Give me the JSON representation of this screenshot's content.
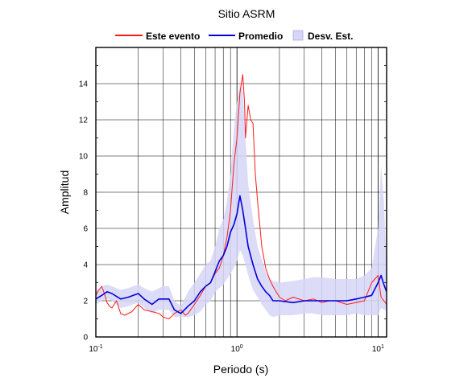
{
  "chart_data": {
    "type": "line",
    "title": "Sitio ASRM",
    "xlabel": "Periodo (s)",
    "ylabel": "Amplitud",
    "x_scale": "log",
    "xlim": [
      0.1,
      11.5
    ],
    "ylim": [
      0,
      16
    ],
    "x_ticks": [
      0.1,
      1,
      10
    ],
    "x_tick_labels": [
      {
        "base": "10",
        "exp": "-1"
      },
      {
        "base": "10",
        "exp": "0"
      },
      {
        "base": "10",
        "exp": "1"
      }
    ],
    "y_ticks": [
      0,
      2,
      4,
      6,
      8,
      10,
      12,
      14
    ],
    "y_tick_labels": [
      "0",
      "2",
      "4",
      "6",
      "8",
      "10",
      "12",
      "14"
    ],
    "grid": true,
    "legend_position": "top",
    "legend": [
      {
        "label": "Este evento",
        "kind": "line",
        "color": "#ff1a1a"
      },
      {
        "label": "Promedio",
        "kind": "line",
        "color": "#0000dd"
      },
      {
        "label": "Desv. Est.",
        "kind": "patch",
        "color": "#d6d6f7"
      }
    ],
    "series": [
      {
        "name": "Este evento",
        "color": "#ff1a1a",
        "x": [
          0.1,
          0.105,
          0.11,
          0.115,
          0.12,
          0.125,
          0.13,
          0.14,
          0.15,
          0.16,
          0.18,
          0.2,
          0.22,
          0.25,
          0.28,
          0.3,
          0.33,
          0.36,
          0.4,
          0.43,
          0.45,
          0.5,
          0.55,
          0.6,
          0.65,
          0.7,
          0.75,
          0.8,
          0.85,
          0.9,
          0.95,
          1.0,
          1.05,
          1.1,
          1.13,
          1.15,
          1.2,
          1.25,
          1.3,
          1.35,
          1.4,
          1.5,
          1.6,
          1.7,
          1.8,
          2.0,
          2.2,
          2.5,
          3.0,
          3.5,
          4.0,
          4.5,
          5.0,
          6.0,
          7.0,
          8.0,
          9.0,
          10.0,
          10.5,
          11.0,
          11.5
        ],
        "y": [
          2.3,
          2.6,
          2.8,
          2.4,
          1.9,
          1.7,
          1.6,
          2.0,
          1.3,
          1.2,
          1.4,
          1.8,
          1.5,
          1.4,
          1.3,
          1.1,
          1.0,
          1.3,
          1.5,
          1.2,
          1.3,
          1.8,
          2.3,
          2.8,
          3.0,
          3.5,
          3.8,
          4.5,
          5.5,
          7.0,
          9.5,
          11.0,
          13.5,
          14.5,
          13.0,
          11.0,
          12.8,
          12.0,
          11.8,
          9.0,
          7.5,
          5.0,
          3.8,
          3.2,
          2.8,
          2.2,
          2.0,
          2.2,
          2.0,
          2.1,
          1.9,
          2.0,
          2.0,
          1.8,
          1.9,
          2.0,
          3.0,
          3.4,
          2.2,
          2.0,
          1.8
        ]
      },
      {
        "name": "Promedio",
        "color": "#0000dd",
        "x": [
          0.1,
          0.11,
          0.12,
          0.13,
          0.15,
          0.17,
          0.2,
          0.22,
          0.25,
          0.28,
          0.3,
          0.33,
          0.36,
          0.4,
          0.45,
          0.5,
          0.55,
          0.6,
          0.65,
          0.7,
          0.75,
          0.8,
          0.85,
          0.9,
          0.95,
          1.0,
          1.05,
          1.1,
          1.15,
          1.2,
          1.3,
          1.4,
          1.5,
          1.6,
          1.7,
          1.8,
          2.0,
          2.5,
          3.0,
          3.5,
          4.0,
          5.0,
          6.0,
          7.0,
          8.0,
          9.0,
          10.0,
          10.5,
          11.0,
          11.5
        ],
        "y": [
          2.1,
          2.3,
          2.5,
          2.4,
          2.1,
          2.2,
          2.4,
          2.1,
          1.8,
          2.1,
          2.1,
          2.1,
          1.5,
          1.3,
          1.7,
          2.0,
          2.5,
          2.8,
          3.0,
          3.6,
          4.2,
          4.5,
          5.0,
          5.8,
          6.2,
          6.8,
          7.8,
          7.0,
          6.0,
          5.0,
          4.0,
          3.2,
          2.8,
          2.5,
          2.3,
          2.0,
          2.0,
          1.9,
          2.0,
          2.0,
          2.0,
          2.0,
          2.0,
          2.1,
          2.2,
          2.3,
          3.0,
          3.4,
          2.9,
          2.5
        ]
      }
    ],
    "band": {
      "name": "Desv. Est.",
      "color": "#d6d6f7",
      "x": [
        0.1,
        0.11,
        0.12,
        0.13,
        0.15,
        0.17,
        0.2,
        0.22,
        0.25,
        0.28,
        0.3,
        0.33,
        0.36,
        0.4,
        0.45,
        0.5,
        0.55,
        0.6,
        0.65,
        0.7,
        0.75,
        0.8,
        0.85,
        0.9,
        0.95,
        1.0,
        1.05,
        1.1,
        1.15,
        1.2,
        1.3,
        1.4,
        1.5,
        1.6,
        1.7,
        1.8,
        2.0,
        2.5,
        3.0,
        3.5,
        4.0,
        5.0,
        6.0,
        7.0,
        8.0,
        9.0,
        10.0,
        10.5,
        11.0,
        11.5
      ],
      "upper": [
        2.5,
        2.8,
        2.9,
        2.8,
        2.6,
        2.7,
        2.9,
        2.7,
        2.5,
        2.7,
        2.8,
        2.8,
        2.0,
        1.7,
        2.5,
        3.0,
        3.5,
        4.0,
        4.2,
        5.0,
        6.0,
        6.5,
        7.5,
        9.0,
        11.5,
        13.0,
        14.0,
        13.5,
        11.0,
        8.5,
        6.5,
        5.0,
        4.3,
        3.6,
        3.2,
        3.1,
        3.0,
        3.1,
        3.2,
        3.3,
        3.3,
        3.2,
        3.2,
        3.2,
        3.4,
        3.8,
        6.0,
        9.5,
        7.5,
        4.0
      ],
      "lower": [
        1.8,
        2.0,
        2.1,
        2.0,
        1.6,
        1.7,
        1.9,
        1.6,
        1.3,
        1.5,
        1.5,
        1.5,
        1.1,
        1.1,
        1.1,
        1.2,
        1.4,
        1.8,
        2.0,
        2.5,
        2.7,
        2.9,
        3.2,
        3.5,
        3.8,
        4.2,
        4.8,
        4.5,
        4.0,
        3.4,
        2.6,
        2.2,
        1.8,
        1.5,
        1.2,
        1.1,
        1.2,
        1.2,
        1.3,
        1.3,
        1.2,
        1.2,
        1.2,
        1.3,
        1.2,
        1.2,
        1.2,
        1.6,
        1.5,
        1.5
      ]
    }
  }
}
